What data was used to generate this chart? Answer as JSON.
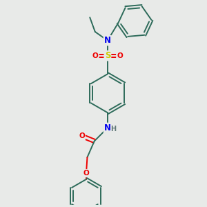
{
  "background_color": "#e8eae8",
  "bond_color": "#2d6b5a",
  "atom_colors": {
    "N": "#0000ee",
    "O": "#ee0000",
    "S": "#cccc00",
    "H": "#607878",
    "C": "#2d6b5a"
  },
  "figsize": [
    3.0,
    3.0
  ],
  "dpi": 100
}
